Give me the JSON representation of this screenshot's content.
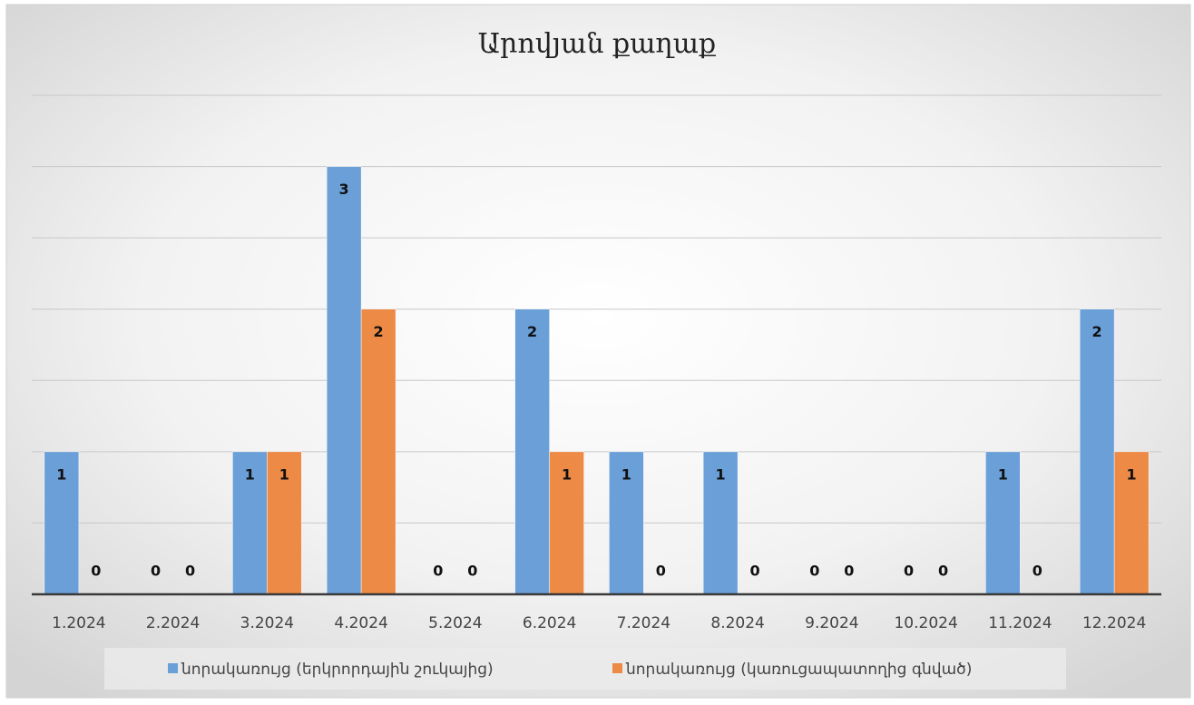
{
  "chart_data": {
    "type": "bar",
    "title": "Արովյան քաղաք",
    "categories": [
      "1.2024",
      "2.2024",
      "3.2024",
      "4.2024",
      "5.2024",
      "6.2024",
      "7.2024",
      "8.2024",
      "9.2024",
      "10.2024",
      "11.2024",
      "12.2024"
    ],
    "series": [
      {
        "name": "նորակառույց (երկրորդային շուկայից)",
        "color": "#6a9fd8",
        "values": [
          1,
          0,
          1,
          3,
          0,
          2,
          1,
          1,
          0,
          0,
          1,
          2
        ]
      },
      {
        "name": "նորակառույց (կառուցապատողից գնված)",
        "color": "#ed8a45",
        "values": [
          0,
          0,
          1,
          2,
          0,
          1,
          0,
          0,
          0,
          0,
          0,
          1
        ]
      }
    ],
    "ylim": [
      0,
      3.5
    ],
    "yticks": [
      0,
      0.5,
      1,
      1.5,
      2,
      2.5,
      3,
      3.5
    ],
    "grid": true,
    "legend": "bottom"
  }
}
